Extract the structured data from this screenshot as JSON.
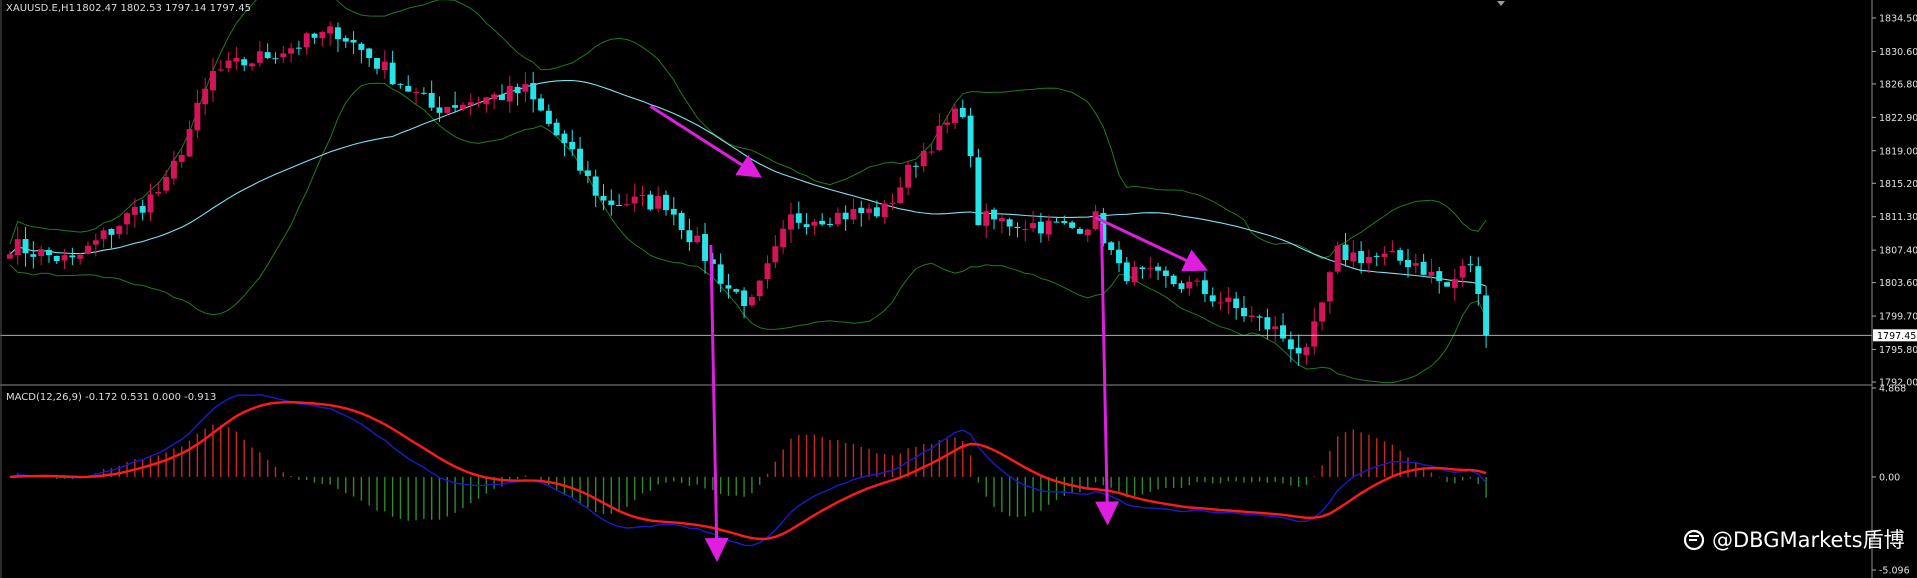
{
  "header": {
    "symbol": "XAUUSD.E,H1",
    "ohlc": "1802.47 1802.53 1797.14 1797.45"
  },
  "indicator": {
    "label": "MACD(12,26,9) -0.172 0.531 0.000 -0.913"
  },
  "watermark": {
    "text": "@DBGMarkets盾博"
  },
  "colors": {
    "background": "#000000",
    "bull": "#d4145a",
    "bear": "#27e3e8",
    "bollinger": "#1f7a1f",
    "ma": "#7fe0f0",
    "macd_line": "#1a1acd",
    "signal_line": "#ff1a1a",
    "hist_pos": "#c82828",
    "hist_neg": "#2e8b2e",
    "arrow": "#e01ee0",
    "current_price_line": "#c8c8c8"
  },
  "chart_data": {
    "type": "candlestick",
    "price_axis_ticks": [
      "1834.50",
      "1830.60",
      "1826.80",
      "1822.90",
      "1819.00",
      "1815.20",
      "1811.30",
      "1807.40",
      "1803.60",
      "1799.70",
      "1795.80",
      "1792.00"
    ],
    "current_price": 1797.45,
    "current_price_label": "1797.45",
    "price_range": [
      1792.0,
      1834.5
    ],
    "trend_key_points": [
      {
        "bar": 0,
        "close": 1808
      },
      {
        "bar": 8,
        "close": 1806
      },
      {
        "bar": 20,
        "close": 1815
      },
      {
        "bar": 26,
        "close": 1828
      },
      {
        "bar": 42,
        "close": 1833
      },
      {
        "bar": 54,
        "close": 1824
      },
      {
        "bar": 66,
        "close": 1826
      },
      {
        "bar": 76,
        "close": 1813
      },
      {
        "bar": 84,
        "close": 1813
      },
      {
        "bar": 92,
        "close": 1803
      },
      {
        "bar": 95,
        "close": 1801
      },
      {
        "bar": 100,
        "close": 1811
      },
      {
        "bar": 112,
        "close": 1812
      },
      {
        "bar": 116,
        "close": 1818
      },
      {
        "bar": 122,
        "close": 1824
      },
      {
        "bar": 124,
        "close": 1811
      },
      {
        "bar": 136,
        "close": 1810
      },
      {
        "bar": 139,
        "close": 1811
      },
      {
        "bar": 142,
        "close": 1805
      },
      {
        "bar": 152,
        "close": 1803
      },
      {
        "bar": 162,
        "close": 1798
      },
      {
        "bar": 166,
        "close": 1795
      },
      {
        "bar": 170,
        "close": 1807
      },
      {
        "bar": 180,
        "close": 1806
      },
      {
        "bar": 184,
        "close": 1803
      },
      {
        "bar": 187,
        "close": 1806
      },
      {
        "bar": 189,
        "close": 1797.45
      }
    ],
    "macd_axis_ticks": [
      "4.868",
      "0.00",
      "-5.096"
    ],
    "macd_range": [
      -5.096,
      4.868
    ],
    "macd": {
      "fast": 12,
      "slow": 26,
      "signal": 9,
      "current_macd": -0.172,
      "current_signal": 0.531
    },
    "annotations": [
      {
        "type": "arrow",
        "from_bar": 82,
        "from_price": 1824.2,
        "to_bar": 95,
        "to_price": 1816.6
      },
      {
        "type": "arrow",
        "from_bar": 139,
        "from_price": 1811.2,
        "to_bar": 152,
        "to_price": 1805.6
      },
      {
        "type": "arrow_to_indicator",
        "bar": 90,
        "from_price": 1808.0,
        "to_macd": -4.0
      },
      {
        "type": "arrow_to_indicator",
        "bar": 140,
        "from_price": 1810.5,
        "to_macd": -2.0
      }
    ]
  }
}
